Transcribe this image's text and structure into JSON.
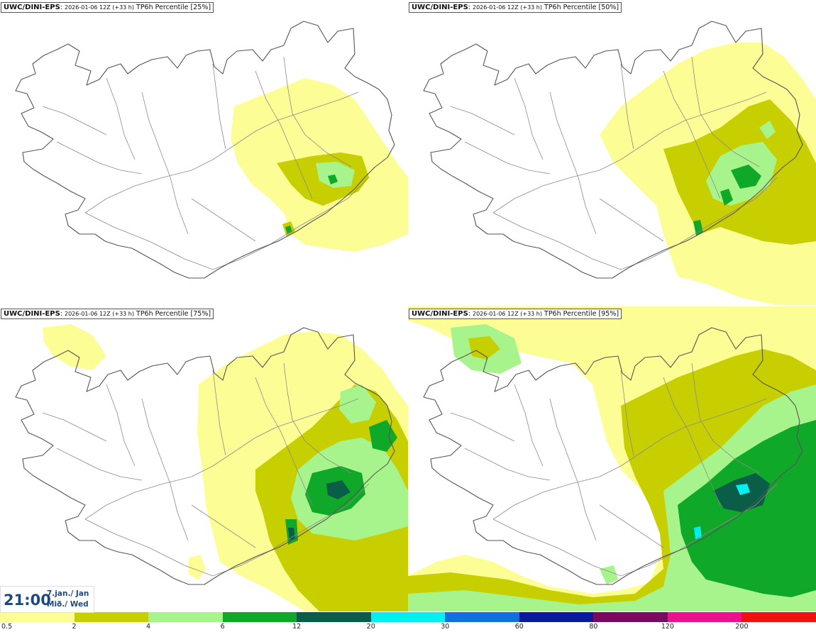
{
  "panels": [
    {
      "id": "p25",
      "source": "UWC/DINI-EPS",
      "run": "2026-01-06 12Z (+33 h)",
      "field": "TP6h Percentile [25%]"
    },
    {
      "id": "p50",
      "source": "UWC/DINI-EPS",
      "run": "2026-01-06 12Z (+33 h)",
      "field": "TP6h Percentile [50%]"
    },
    {
      "id": "p75",
      "source": "UWC/DINI-EPS",
      "run": "2026-01-06 12Z (+33 h)",
      "field": "TP6h Percentile [75%]"
    },
    {
      "id": "p95",
      "source": "UWC/DINI-EPS",
      "run": "2026-01-06 12Z (+33 h)",
      "field": "TP6h Percentile [95%]"
    }
  ],
  "valid_time": {
    "time": "21:00",
    "date_line1": "7.jan./ Jan",
    "date_line2": "Mið./ Wed"
  },
  "legend": {
    "ticks": [
      "0.5",
      "2",
      "4",
      "6",
      "12",
      "20",
      "30",
      "60",
      "80",
      "120",
      "200"
    ],
    "colors": [
      "#fdfd96",
      "#c8cf00",
      "#a8f48c",
      "#10a828",
      "#0a5e48",
      "#00f0f0",
      "#1070e0",
      "#0a1aa0",
      "#7a0a60",
      "#f0108c",
      "#f01010"
    ]
  },
  "palette": {
    "land_bg": "#ffffff",
    "coast": "#555555",
    "roads": "#8a8a8a"
  }
}
